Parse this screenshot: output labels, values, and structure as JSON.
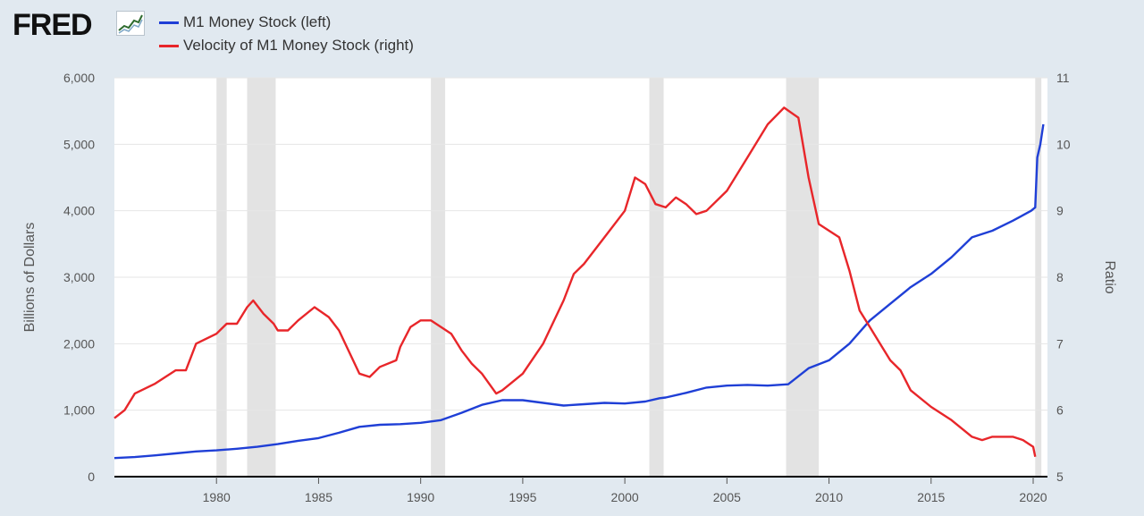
{
  "brand": {
    "logo_text": "FRED",
    "logo_icon": "line-graph-icon"
  },
  "chart_data": {
    "type": "line",
    "legend_placement": "top-left",
    "grid": "horizontal",
    "recession_shading": [
      [
        1980.0,
        1980.5
      ],
      [
        1981.5,
        1982.9
      ],
      [
        1990.5,
        1991.2
      ],
      [
        2001.2,
        2001.9
      ],
      [
        2007.9,
        2009.5
      ],
      [
        2020.1,
        2020.4
      ]
    ],
    "x_axis": {
      "range": [
        1975.0,
        2020.7
      ],
      "ticks": [
        1980,
        1985,
        1990,
        1995,
        2000,
        2005,
        2010,
        2015,
        2020
      ]
    },
    "y_axis_left": {
      "label": "Billions of Dollars",
      "range": [
        0,
        6000
      ],
      "ticks": [
        0,
        1000,
        2000,
        3000,
        4000,
        5000,
        6000
      ],
      "tick_labels": [
        "0",
        "1,000",
        "2,000",
        "3,000",
        "4,000",
        "5,000",
        "6,000"
      ]
    },
    "y_axis_right": {
      "label": "Ratio",
      "range": [
        5,
        11
      ],
      "ticks": [
        5,
        6,
        7,
        8,
        9,
        10,
        11
      ],
      "tick_labels": [
        "5",
        "6",
        "7",
        "8",
        "9",
        "10",
        "11"
      ]
    },
    "series": [
      {
        "name": "M1 Money Stock (left)",
        "axis": "left",
        "color": "#1f3fd6",
        "points": [
          [
            1975.0,
            280
          ],
          [
            1976,
            295
          ],
          [
            1977,
            320
          ],
          [
            1978,
            350
          ],
          [
            1979,
            380
          ],
          [
            1980,
            395
          ],
          [
            1981,
            420
          ],
          [
            1982,
            450
          ],
          [
            1983,
            490
          ],
          [
            1984,
            540
          ],
          [
            1985,
            580
          ],
          [
            1986,
            660
          ],
          [
            1987,
            750
          ],
          [
            1988,
            780
          ],
          [
            1989,
            790
          ],
          [
            1990,
            810
          ],
          [
            1991,
            850
          ],
          [
            1992,
            960
          ],
          [
            1993,
            1080
          ],
          [
            1994,
            1150
          ],
          [
            1995,
            1150
          ],
          [
            1996,
            1110
          ],
          [
            1997,
            1070
          ],
          [
            1998,
            1090
          ],
          [
            1999,
            1110
          ],
          [
            2000,
            1100
          ],
          [
            2001,
            1130
          ],
          [
            2001.7,
            1180
          ],
          [
            2002,
            1190
          ],
          [
            2003,
            1260
          ],
          [
            2004,
            1340
          ],
          [
            2005,
            1370
          ],
          [
            2006,
            1380
          ],
          [
            2007,
            1370
          ],
          [
            2008,
            1390
          ],
          [
            2009,
            1630
          ],
          [
            2010,
            1750
          ],
          [
            2011,
            2000
          ],
          [
            2012,
            2350
          ],
          [
            2013,
            2600
          ],
          [
            2014,
            2850
          ],
          [
            2015,
            3050
          ],
          [
            2016,
            3300
          ],
          [
            2017,
            3600
          ],
          [
            2018,
            3700
          ],
          [
            2019,
            3850
          ],
          [
            2019.9,
            4000
          ],
          [
            2020.1,
            4050
          ],
          [
            2020.2,
            4800
          ],
          [
            2020.35,
            5000
          ],
          [
            2020.5,
            5300
          ]
        ]
      },
      {
        "name": "Velocity of M1 Money Stock (right)",
        "axis": "right",
        "color": "#e8262a",
        "points": [
          [
            1975.0,
            5.88
          ],
          [
            1975.5,
            6.0
          ],
          [
            1976,
            6.25
          ],
          [
            1977,
            6.4
          ],
          [
            1978,
            6.6
          ],
          [
            1978.5,
            6.6
          ],
          [
            1979,
            7.0
          ],
          [
            1980,
            7.15
          ],
          [
            1980.5,
            7.3
          ],
          [
            1981,
            7.3
          ],
          [
            1981.5,
            7.55
          ],
          [
            1981.8,
            7.65
          ],
          [
            1982.3,
            7.45
          ],
          [
            1982.8,
            7.3
          ],
          [
            1983,
            7.2
          ],
          [
            1983.5,
            7.2
          ],
          [
            1984,
            7.35
          ],
          [
            1984.8,
            7.55
          ],
          [
            1985.5,
            7.4
          ],
          [
            1986,
            7.2
          ],
          [
            1987,
            6.55
          ],
          [
            1987.5,
            6.5
          ],
          [
            1988,
            6.65
          ],
          [
            1988.8,
            6.75
          ],
          [
            1989,
            6.95
          ],
          [
            1989.5,
            7.25
          ],
          [
            1990,
            7.35
          ],
          [
            1990.5,
            7.35
          ],
          [
            1991,
            7.25
          ],
          [
            1991.5,
            7.15
          ],
          [
            1992,
            6.9
          ],
          [
            1992.5,
            6.7
          ],
          [
            1993,
            6.55
          ],
          [
            1993.7,
            6.25
          ],
          [
            1994,
            6.3
          ],
          [
            1995,
            6.55
          ],
          [
            1996,
            7.0
          ],
          [
            1997,
            7.65
          ],
          [
            1997.5,
            8.05
          ],
          [
            1998,
            8.2
          ],
          [
            1999,
            8.6
          ],
          [
            2000,
            9.0
          ],
          [
            2000.5,
            9.5
          ],
          [
            2001,
            9.4
          ],
          [
            2001.5,
            9.1
          ],
          [
            2002,
            9.05
          ],
          [
            2002.5,
            9.2
          ],
          [
            2003,
            9.1
          ],
          [
            2003.5,
            8.95
          ],
          [
            2004,
            9.0
          ],
          [
            2005,
            9.3
          ],
          [
            2006,
            9.8
          ],
          [
            2007,
            10.3
          ],
          [
            2007.8,
            10.55
          ],
          [
            2008.5,
            10.4
          ],
          [
            2009,
            9.5
          ],
          [
            2009.5,
            8.8
          ],
          [
            2010,
            8.7
          ],
          [
            2010.5,
            8.6
          ],
          [
            2011,
            8.1
          ],
          [
            2011.5,
            7.5
          ],
          [
            2012,
            7.25
          ],
          [
            2013,
            6.75
          ],
          [
            2013.5,
            6.6
          ],
          [
            2014,
            6.3
          ],
          [
            2015,
            6.05
          ],
          [
            2016,
            5.85
          ],
          [
            2017,
            5.6
          ],
          [
            2017.5,
            5.55
          ],
          [
            2018,
            5.6
          ],
          [
            2019,
            5.6
          ],
          [
            2019.5,
            5.55
          ],
          [
            2020.0,
            5.45
          ],
          [
            2020.1,
            5.3
          ]
        ]
      }
    ]
  }
}
